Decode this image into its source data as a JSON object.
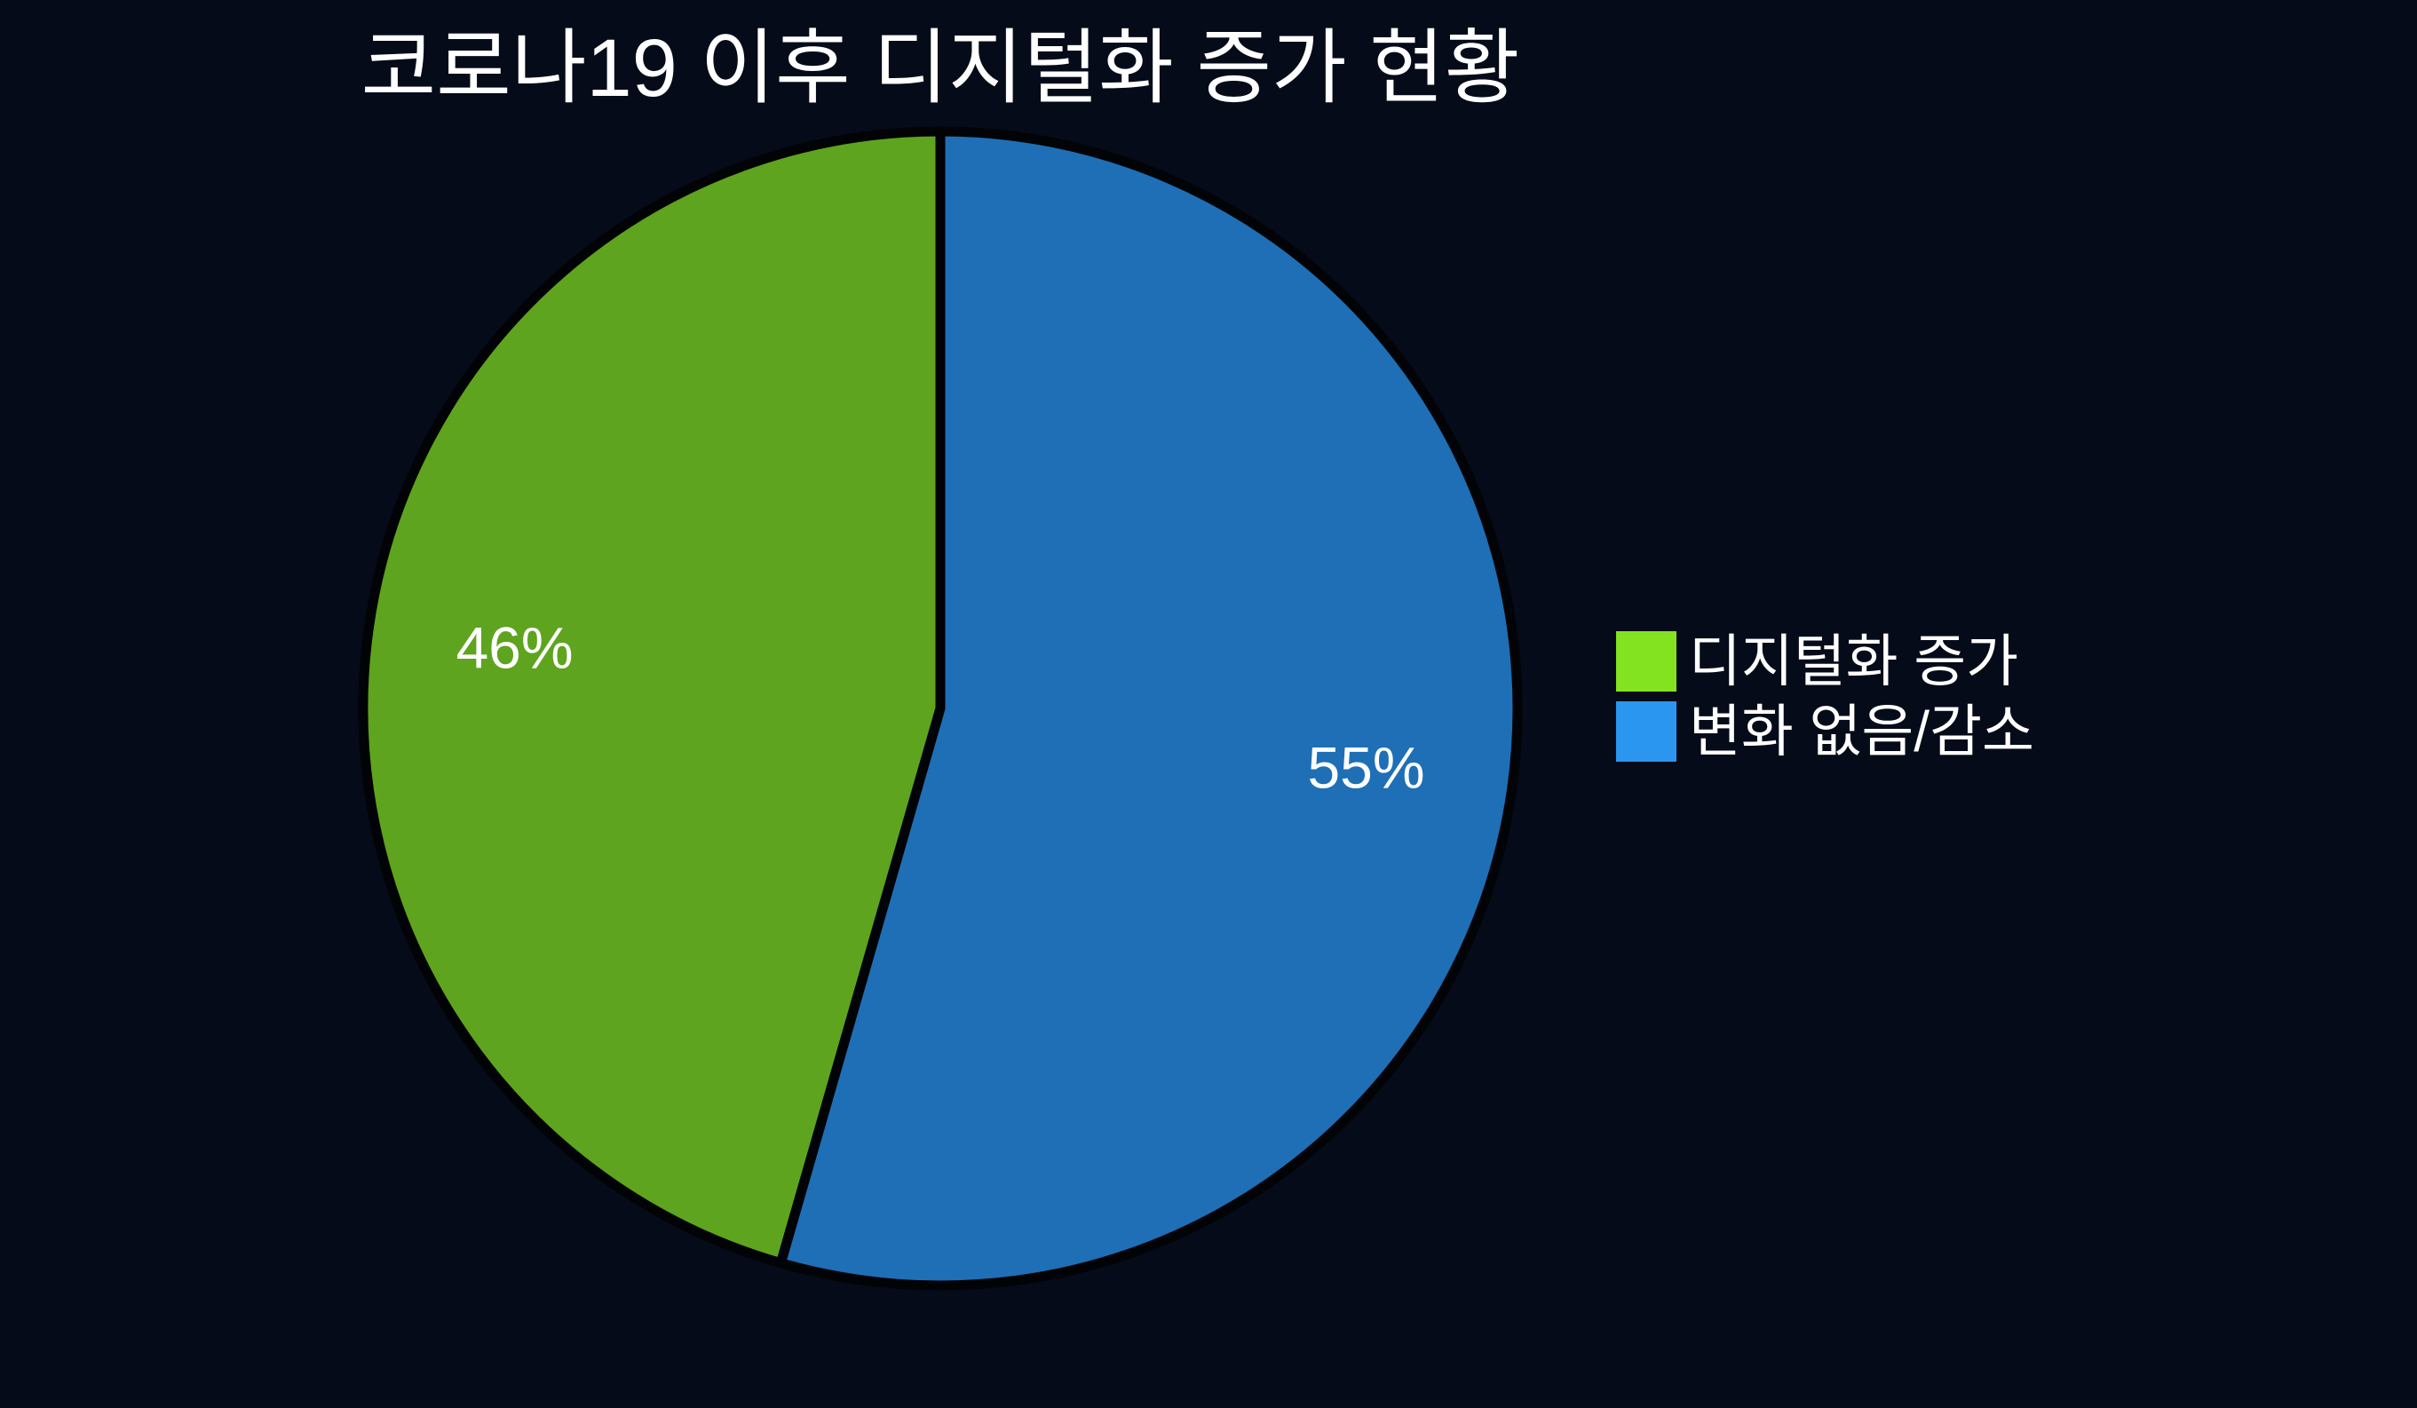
{
  "chart_data": {
    "type": "pie",
    "title": "코로나19 이후 디지털화 증가 현황",
    "start": "12 o'clock",
    "direction_first_segment": "counterclockwise",
    "labels_inside": true,
    "legend_position": "right-center",
    "background_color": "#050b19",
    "slice_outline_color": "#020306",
    "value_label_color": "#ffffff",
    "title_color": "#ffffff",
    "segments": [
      {
        "label": "디지털화 증가",
        "value": 46,
        "display": "46%",
        "color": "#5ea41e",
        "legend_color": "#84e320"
      },
      {
        "label": "변화 없음/감소",
        "value": 55,
        "display": "55%",
        "color": "#1e6fb5",
        "legend_color": "#2b96f0"
      }
    ]
  }
}
